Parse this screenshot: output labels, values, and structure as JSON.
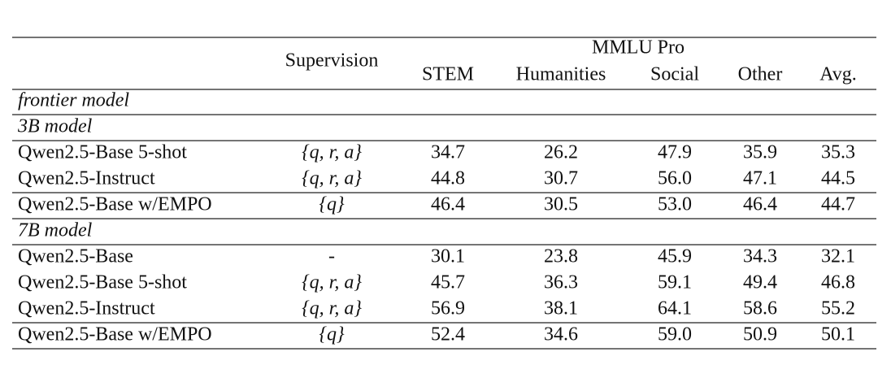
{
  "header": {
    "supervision": "Supervision",
    "group": "MMLU Pro",
    "columns": [
      "STEM",
      "Humanities",
      "Social",
      "Other",
      "Avg."
    ]
  },
  "sections": [
    {
      "label": "frontier model",
      "rows": []
    },
    {
      "label": "3B model",
      "rows": [
        {
          "model": "Qwen2.5-Base 5-shot",
          "supervision": "{q, r, a}",
          "values": [
            "34.7",
            "26.2",
            "47.9",
            "35.9",
            "35.3"
          ]
        },
        {
          "model": "Qwen2.5-Instruct",
          "supervision": "{q, r, a}",
          "values": [
            "44.8",
            "30.7",
            "56.0",
            "47.1",
            "44.5"
          ]
        },
        {
          "model": "Qwen2.5-Base w/EMPO",
          "supervision": "{q}",
          "values": [
            "46.4",
            "30.5",
            "53.0",
            "46.4",
            "44.7"
          ]
        }
      ]
    },
    {
      "label": "7B model",
      "rows": [
        {
          "model": "Qwen2.5-Base",
          "supervision": "-",
          "values": [
            "30.1",
            "23.8",
            "45.9",
            "34.3",
            "32.1"
          ]
        },
        {
          "model": "Qwen2.5-Base 5-shot",
          "supervision": "{q, r, a}",
          "values": [
            "45.7",
            "36.3",
            "59.1",
            "49.4",
            "46.8"
          ]
        },
        {
          "model": "Qwen2.5-Instruct",
          "supervision": "{q, r, a}",
          "values": [
            "56.9",
            "38.1",
            "64.1",
            "58.6",
            "55.2"
          ]
        },
        {
          "model": "Qwen2.5-Base w/EMPO",
          "supervision": "{q}",
          "values": [
            "52.4",
            "34.6",
            "59.0",
            "50.9",
            "50.1"
          ]
        }
      ]
    }
  ]
}
